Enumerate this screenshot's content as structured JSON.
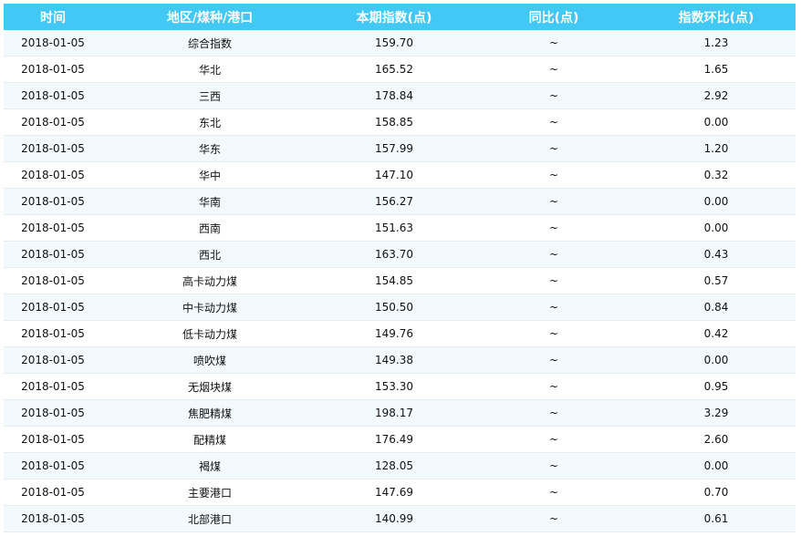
{
  "header_color": "#41c8f5",
  "columns": [
    "时间",
    "地区/煤种/港口",
    "本期指数(点)",
    "同比(点)",
    "指数环比(点)"
  ],
  "rows": [
    [
      "2018-01-05",
      "综合指数",
      "159.70",
      "~",
      "1.23"
    ],
    [
      "2018-01-05",
      "华北",
      "165.52",
      "~",
      "1.65"
    ],
    [
      "2018-01-05",
      "三西",
      "178.84",
      "~",
      "2.92"
    ],
    [
      "2018-01-05",
      "东北",
      "158.85",
      "~",
      "0.00"
    ],
    [
      "2018-01-05",
      "华东",
      "157.99",
      "~",
      "1.20"
    ],
    [
      "2018-01-05",
      "华中",
      "147.10",
      "~",
      "0.32"
    ],
    [
      "2018-01-05",
      "华南",
      "156.27",
      "~",
      "0.00"
    ],
    [
      "2018-01-05",
      "西南",
      "151.63",
      "~",
      "0.00"
    ],
    [
      "2018-01-05",
      "西北",
      "163.70",
      "~",
      "0.43"
    ],
    [
      "2018-01-05",
      "高卡动力煤",
      "154.85",
      "~",
      "0.57"
    ],
    [
      "2018-01-05",
      "中卡动力煤",
      "150.50",
      "~",
      "0.84"
    ],
    [
      "2018-01-05",
      "低卡动力煤",
      "149.76",
      "~",
      "0.42"
    ],
    [
      "2018-01-05",
      "喷吹煤",
      "149.38",
      "~",
      "0.00"
    ],
    [
      "2018-01-05",
      "无烟块煤",
      "153.30",
      "~",
      "0.95"
    ],
    [
      "2018-01-05",
      "焦肥精煤",
      "198.17",
      "~",
      "3.29"
    ],
    [
      "2018-01-05",
      "配精煤",
      "176.49",
      "~",
      "2.60"
    ],
    [
      "2018-01-05",
      "褐煤",
      "128.05",
      "~",
      "0.00"
    ],
    [
      "2018-01-05",
      "主要港口",
      "147.69",
      "~",
      "0.70"
    ],
    [
      "2018-01-05",
      "北部港口",
      "140.99",
      "~",
      "0.61"
    ]
  ]
}
